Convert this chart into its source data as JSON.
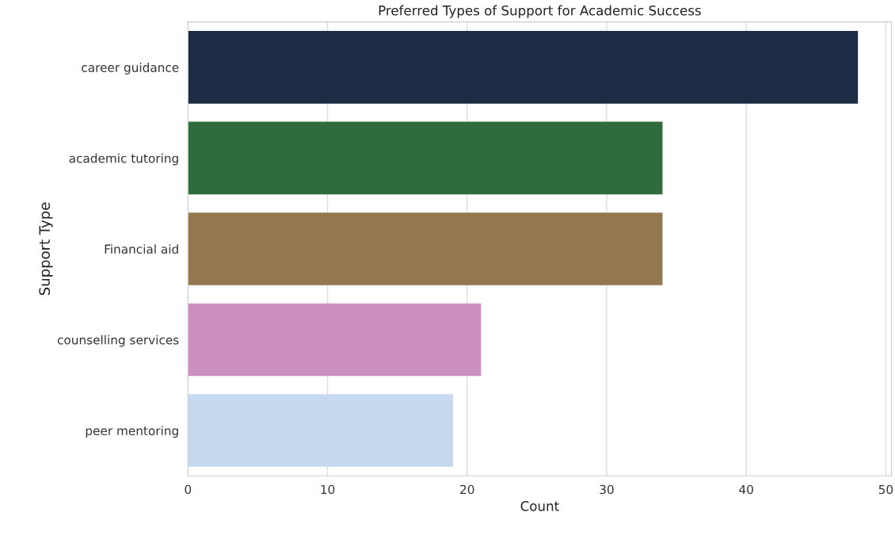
{
  "chart_data": {
    "type": "bar",
    "orientation": "horizontal",
    "title": "Preferred Types of Support for Academic Success",
    "xlabel": "Count",
    "ylabel": "Support Type",
    "categories": [
      "career guidance",
      "academic tutoring",
      "Financial aid",
      "counselling services",
      "peer mentoring"
    ],
    "values": [
      48,
      34,
      34,
      21,
      19
    ],
    "colors": [
      "#1d2b45",
      "#2f6b3d",
      "#93774f",
      "#cb90c0",
      "#c6d9ee"
    ],
    "xlim": [
      0,
      50.4
    ],
    "xticks": [
      0,
      10,
      20,
      30,
      40,
      50
    ],
    "grid": "x"
  }
}
